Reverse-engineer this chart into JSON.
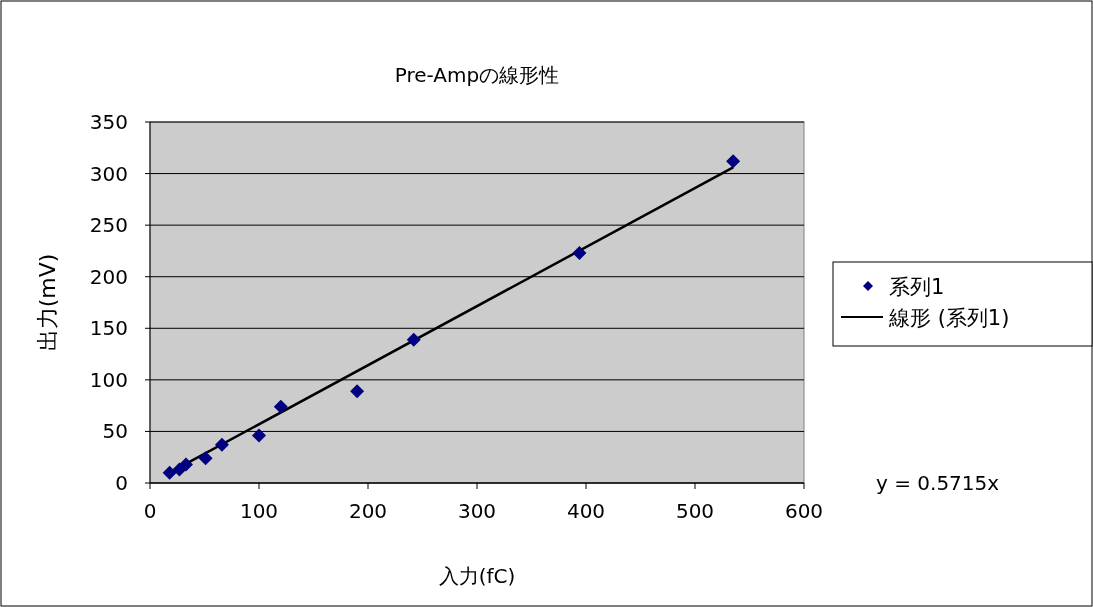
{
  "chart_data": {
    "type": "scatter",
    "title": "Pre-Ampの線形性",
    "xlabel": "入力(fC)",
    "ylabel": "出力(mV)",
    "series": [
      {
        "name": "系列1",
        "color": "#000080",
        "marker": "diamond",
        "x": [
          18,
          27,
          33,
          51,
          66,
          100,
          120,
          190,
          242,
          394,
          535
        ],
        "values": [
          10,
          13,
          18,
          24,
          37,
          46,
          74,
          89,
          139,
          223,
          312
        ]
      },
      {
        "name": "線形 (系列1)",
        "type": "line",
        "color": "#000000",
        "line_style": "solid",
        "x": [
          18,
          535
        ],
        "values": [
          10,
          306
        ]
      }
    ],
    "xlim": [
      0,
      600
    ],
    "xticks": [
      0,
      100,
      200,
      300,
      400,
      500,
      600
    ],
    "ylim": [
      0,
      350
    ],
    "yticks": [
      0,
      50,
      100,
      150,
      200,
      250,
      300,
      350
    ],
    "grid": "y",
    "legend": "right",
    "annotations": [
      "y = 0.5715x"
    ]
  }
}
